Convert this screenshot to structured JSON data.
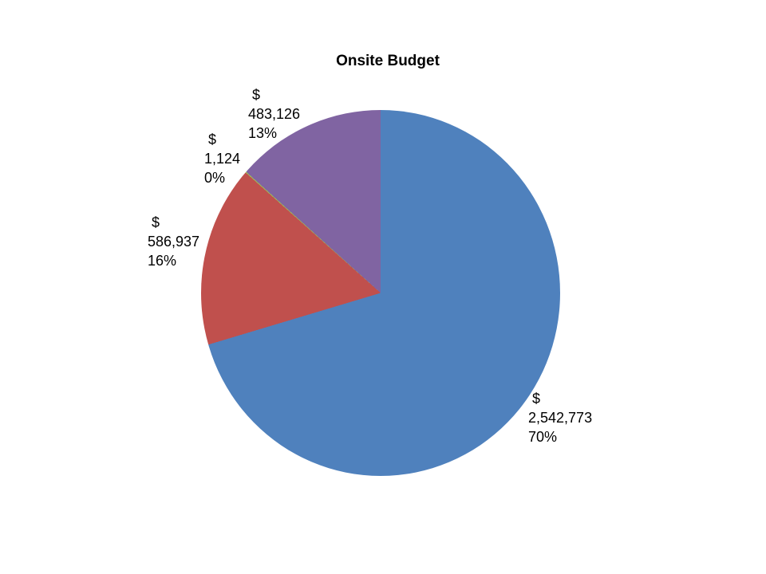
{
  "page": {
    "background_color": "#FFFFFF"
  },
  "chart_data": {
    "type": "pie",
    "title": "Onsite Budget",
    "legend": "none",
    "start_angle_deg": 0,
    "direction": "clockwise",
    "label_format": "dollar amount and percent, outside end",
    "total": 3613960,
    "slices": [
      {
        "value": 2542773,
        "dollar_sign": "$",
        "amount_label": "2,542,773",
        "percent_label": "70%",
        "color": "#4F81BD"
      },
      {
        "value": 586937,
        "dollar_sign": "$",
        "amount_label": "586,937",
        "percent_label": "16%",
        "color": "#C0504D"
      },
      {
        "value": 1124,
        "dollar_sign": "$",
        "amount_label": "1,124",
        "percent_label": "0%",
        "color": "#9BBB59"
      },
      {
        "value": 483126,
        "dollar_sign": "$",
        "amount_label": "483,126",
        "percent_label": "13%",
        "color": "#8064A2"
      }
    ]
  }
}
